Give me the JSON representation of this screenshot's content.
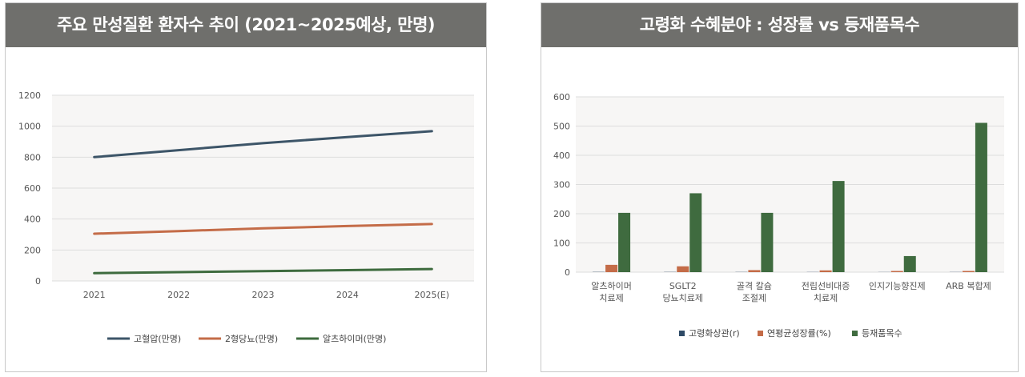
{
  "chart_data": [
    {
      "type": "line",
      "title": "주요 만성질환 환자수 추이 (2021~2025예상, 만명)",
      "categories": [
        "2021",
        "2022",
        "2023",
        "2024",
        "2025(E)"
      ],
      "ylim": [
        0,
        1200
      ],
      "yticks": [
        "0",
        "200",
        "400",
        "600",
        "800",
        "1000",
        "1200"
      ],
      "grid": true,
      "legend_position": "bottom",
      "series": [
        {
          "name": "고혈압(만명)",
          "color": "#3d5568",
          "values": [
            800,
            845,
            890,
            930,
            968
          ]
        },
        {
          "name": "2형당뇨(만명)",
          "color": "#c46c48",
          "values": [
            305,
            322,
            340,
            355,
            368
          ]
        },
        {
          "name": "알츠하이머(만명)",
          "color": "#3e6b3e",
          "values": [
            50,
            57,
            63,
            70,
            77
          ]
        }
      ]
    },
    {
      "type": "bar",
      "title": "고령화 수혜분야 : 성장률 vs 등재품목수",
      "categories": [
        [
          "알츠하이머",
          "치료제"
        ],
        [
          "SGLT2",
          "당뇨치료제"
        ],
        [
          "골격 칼슘",
          "조절제"
        ],
        [
          "전립선비대증",
          "치료제"
        ],
        [
          "인지기능향진제"
        ],
        [
          "ARB 복합제"
        ]
      ],
      "ylim": [
        0,
        600
      ],
      "yticks": [
        "0",
        "100",
        "200",
        "300",
        "400",
        "500",
        "600"
      ],
      "grid": true,
      "legend_position": "bottom",
      "series": [
        {
          "name": "고령화상관(r)",
          "color": "#2e4a66",
          "values": [
            0.8,
            0.7,
            0.6,
            0.5,
            0.4,
            0.5
          ]
        },
        {
          "name": "연평균성장률(%)",
          "color": "#c46c48",
          "values": [
            25,
            20,
            7,
            6,
            4,
            4
          ]
        },
        {
          "name": "등재품목수",
          "color": "#3f6b3f",
          "values": [
            203,
            270,
            203,
            312,
            55,
            511
          ]
        }
      ]
    }
  ]
}
